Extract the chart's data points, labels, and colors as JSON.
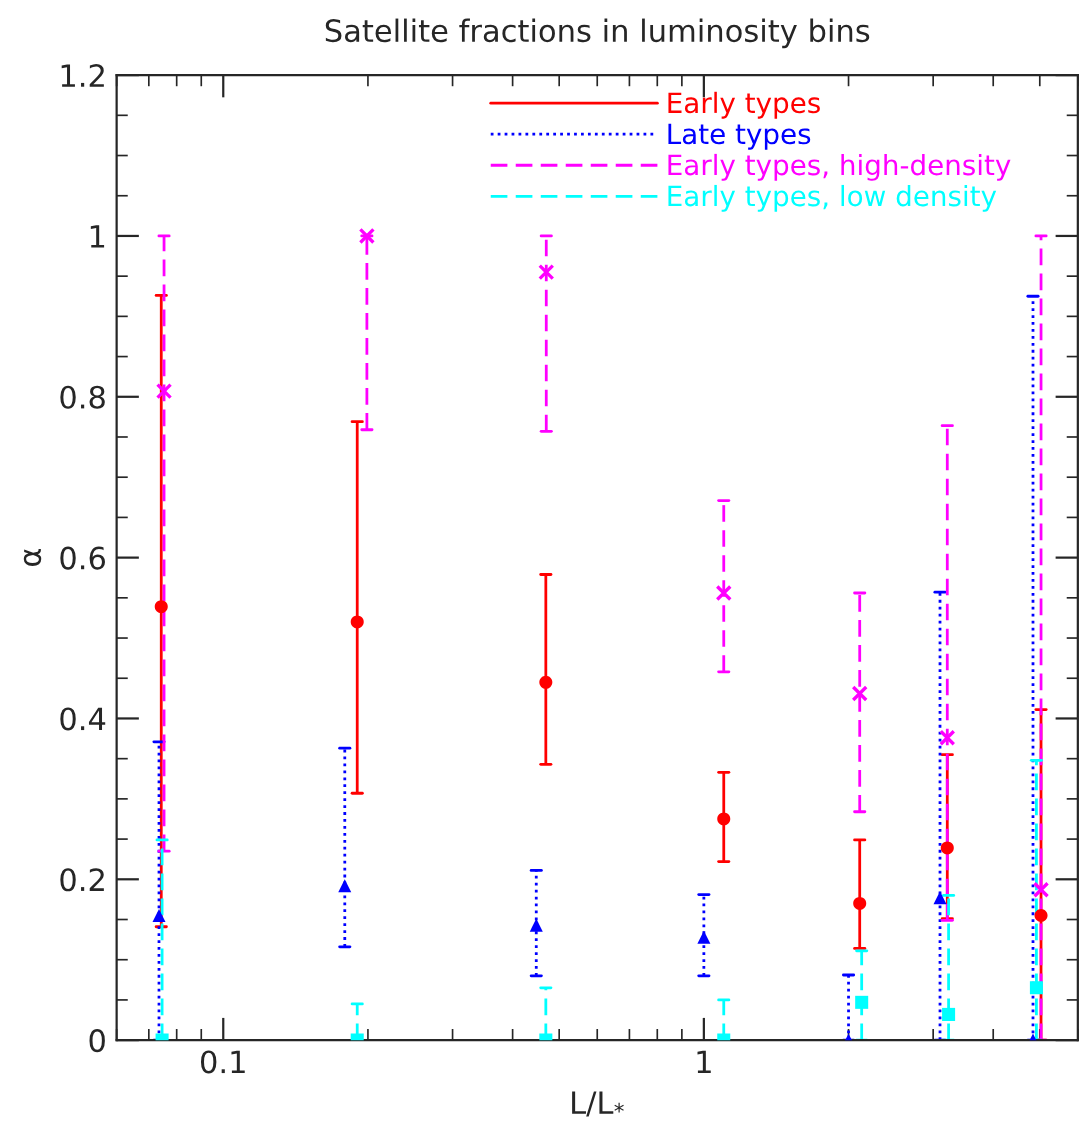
{
  "chart_data": {
    "type": "scatter",
    "title": "Satellite fractions in luminosity bins",
    "xlabel": "L/L$_{*}$",
    "ylabel": "α",
    "log": "x",
    "xlim": [
      0.06,
      6
    ],
    "xticks": [
      0.1,
      1
    ],
    "ylim": [
      0,
      1.2
    ],
    "yticks": [
      0,
      0.2,
      0.4,
      0.6,
      0.8,
      1,
      1.2
    ],
    "grid": false,
    "legend": "top",
    "series": [
      {
        "name": "Early types",
        "color": "#ff0000",
        "marker": "circle",
        "line_style": "solid",
        "x": [
          0.0743,
          0.19,
          0.469,
          1.1,
          2.11,
          3.21,
          5.03
        ],
        "values": [
          0.539,
          0.52,
          0.445,
          0.275,
          0.17,
          0.239,
          0.155
        ],
        "errors": [
          [
            0.141,
            0.926
          ],
          [
            0.307,
            0.769
          ],
          [
            0.343,
            0.579
          ],
          [
            0.222,
            0.333
          ],
          [
            0.114,
            0.249
          ],
          [
            0.151,
            0.355
          ],
          [
            0,
            0.411
          ]
        ]
      },
      {
        "name": "Late types",
        "color": "#0000ff",
        "marker": "triangle",
        "line_style": "dotted",
        "x": [
          0.0735,
          0.179,
          0.448,
          1.0,
          2.0,
          3.1,
          4.84
        ],
        "values": [
          0.155,
          0.192,
          0.143,
          0.128,
          0,
          0.177,
          0
        ],
        "errors": [
          [
            0,
            0.371
          ],
          [
            0.116,
            0.363
          ],
          [
            0.08,
            0.211
          ],
          [
            0.08,
            0.181
          ],
          [
            0,
            0.081
          ],
          [
            0,
            0.557
          ],
          [
            0,
            0.925
          ]
        ]
      },
      {
        "name": "Early types, high-density",
        "color": "#ff00ff",
        "marker": "cross",
        "line_style": "dashed",
        "x": [
          0.0753,
          0.199,
          0.47,
          1.1,
          2.11,
          3.21,
          5.03
        ],
        "values": [
          0.807,
          1.0,
          0.955,
          0.556,
          0.431,
          0.376,
          0.187
        ],
        "errors": [
          [
            0.235,
            1.0
          ],
          [
            0.759,
            1.0
          ],
          [
            0.757,
            1.0
          ],
          [
            0.458,
            0.671
          ],
          [
            0.284,
            0.556
          ],
          [
            0.149,
            0.764
          ],
          [
            0,
            1.0
          ]
        ]
      },
      {
        "name": "Early types, low density",
        "color": "#00ffff",
        "marker": "square",
        "line_style": "dashed",
        "x": [
          0.0746,
          0.19,
          0.469,
          1.1,
          2.13,
          3.23,
          4.92
        ],
        "values": [
          0,
          0,
          0,
          0,
          0.047,
          0.032,
          0.065
        ],
        "errors": [
          [
            0,
            0.249
          ],
          [
            0,
            0.045
          ],
          [
            0,
            0.065
          ],
          [
            0,
            0.05
          ],
          [
            0,
            0.111
          ],
          [
            0,
            0.18
          ],
          [
            0,
            0.348
          ]
        ]
      }
    ]
  }
}
